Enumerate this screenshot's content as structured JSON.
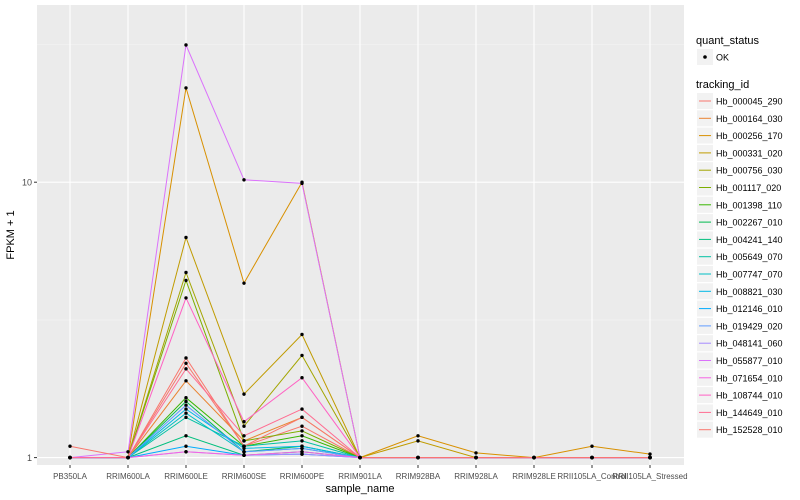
{
  "chart_data": {
    "type": "line",
    "title": "",
    "xlabel": "sample_name",
    "ylabel": "FPKM + 1",
    "y_scale": "log10",
    "ylim": [
      0.94,
      44
    ],
    "y_ticks": [
      {
        "value": 1,
        "label": "1"
      },
      {
        "value": 10,
        "label": "10"
      }
    ],
    "categories": [
      "PB350LA",
      "RRIM600LA",
      "RRIM600LE",
      "RRIM600SE",
      "RRIM600PE",
      "RRIM901LA",
      "RRIM928BA",
      "RRIM928LA",
      "RRIM928LE",
      "RRII105LA_Control",
      "RRII105LA_Stressed"
    ],
    "legend_position": "right",
    "legend_shape": {
      "title": "quant_status",
      "items": [
        {
          "label": "OK"
        }
      ]
    },
    "legend_color": {
      "title": "tracking_id"
    },
    "series": [
      {
        "name": "Hb_000045_290",
        "color": "#F8766D",
        "values": [
          1,
          1,
          2.2,
          1.1,
          1.3,
          1,
          1,
          1,
          1,
          1,
          1
        ]
      },
      {
        "name": "Hb_000164_030",
        "color": "#EA8331",
        "values": [
          1,
          1,
          1.9,
          1.15,
          1.4,
          1,
          1,
          1,
          1,
          1,
          1
        ]
      },
      {
        "name": "Hb_000256_170",
        "color": "#D89000",
        "values": [
          1,
          1,
          22.0,
          4.3,
          10.0,
          1,
          1.2,
          1.04,
          1,
          1.1,
          1.03
        ]
      },
      {
        "name": "Hb_000331_020",
        "color": "#C09B00",
        "values": [
          1,
          1,
          6.3,
          1.7,
          2.8,
          1,
          1.15,
          1,
          1,
          1,
          1
        ]
      },
      {
        "name": "Hb_000756_030",
        "color": "#A3A500",
        "values": [
          1,
          1,
          4.7,
          1.3,
          2.35,
          1,
          1,
          1,
          1,
          1,
          1
        ]
      },
      {
        "name": "Hb_001117_020",
        "color": "#7CAE00",
        "values": [
          1,
          1,
          4.4,
          1.15,
          1.25,
          1,
          1,
          1,
          1,
          1,
          1
        ]
      },
      {
        "name": "Hb_001398_110",
        "color": "#39B600",
        "values": [
          1,
          1,
          1.65,
          1.1,
          1.2,
          1,
          1,
          1,
          1,
          1,
          1
        ]
      },
      {
        "name": "Hb_002267_010",
        "color": "#00BB4E",
        "values": [
          1,
          1,
          1.6,
          1.05,
          1.1,
          1,
          1,
          1,
          1,
          1,
          1
        ]
      },
      {
        "name": "Hb_004241_140",
        "color": "#00BF7D",
        "values": [
          1,
          1,
          1.2,
          1.02,
          1.05,
          1,
          1,
          1,
          1,
          1,
          1
        ]
      },
      {
        "name": "Hb_005649_070",
        "color": "#00C1A3",
        "values": [
          1,
          1,
          1.4,
          1.1,
          1.15,
          1,
          1,
          1,
          1,
          1,
          1
        ]
      },
      {
        "name": "Hb_007747_070",
        "color": "#00BFC4",
        "values": [
          1,
          1,
          1.45,
          1.05,
          1.08,
          1,
          1,
          1,
          1,
          1,
          1
        ]
      },
      {
        "name": "Hb_008821_030",
        "color": "#00B8E5",
        "values": [
          1,
          1,
          1.5,
          1.08,
          1.1,
          1,
          1,
          1,
          1,
          1,
          1
        ]
      },
      {
        "name": "Hb_012146_010",
        "color": "#00ABFD",
        "values": [
          1,
          1,
          1.1,
          1.02,
          1.03,
          1,
          1,
          1,
          1,
          1,
          1
        ]
      },
      {
        "name": "Hb_019429_020",
        "color": "#619CFF",
        "values": [
          1,
          1,
          1.55,
          1.05,
          1.08,
          1,
          1,
          1,
          1,
          1,
          1
        ]
      },
      {
        "name": "Hb_048141_060",
        "color": "#A58AFF",
        "values": [
          1,
          1,
          1.05,
          1.02,
          1.03,
          1,
          1,
          1,
          1,
          1,
          1
        ]
      },
      {
        "name": "Hb_055877_010",
        "color": "#DB72FB",
        "values": [
          1,
          1.05,
          31.5,
          10.2,
          9.9,
          1,
          1,
          1,
          1,
          1,
          1
        ]
      },
      {
        "name": "Hb_071654_010",
        "color": "#F564E3",
        "values": [
          1,
          1,
          1.05,
          1.02,
          1.05,
          1,
          1,
          1,
          1,
          1,
          1
        ]
      },
      {
        "name": "Hb_108744_010",
        "color": "#FF61C3",
        "values": [
          1,
          1,
          3.8,
          1.35,
          1.95,
          1,
          1,
          1,
          1,
          1,
          1
        ]
      },
      {
        "name": "Hb_144649_010",
        "color": "#FF6C91",
        "values": [
          1,
          1,
          2.1,
          1.2,
          1.5,
          1,
          1,
          1,
          1,
          1,
          1
        ]
      },
      {
        "name": "Hb_152528_010",
        "color": "#F9766D",
        "values": [
          1.1,
          1,
          2.3,
          1.1,
          1.4,
          1,
          1,
          1,
          1,
          1,
          1
        ]
      }
    ]
  }
}
